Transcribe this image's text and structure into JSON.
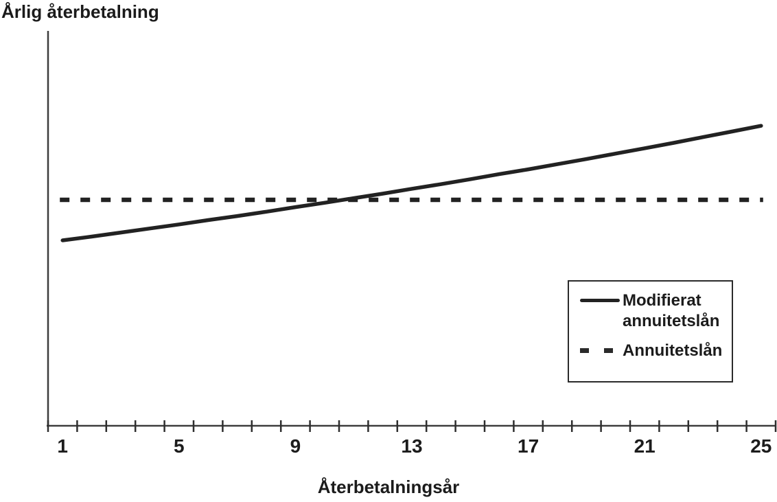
{
  "page": {
    "background": "#ffffff",
    "ink": "#222222"
  },
  "chart_data": {
    "type": "line",
    "title": "",
    "ylabel": "Årlig återbetalning",
    "xlabel": "Återbetalningsår",
    "x": [
      1,
      2,
      3,
      4,
      5,
      6,
      7,
      8,
      9,
      10,
      11,
      12,
      13,
      14,
      15,
      16,
      17,
      18,
      19,
      20,
      21,
      22,
      23,
      24,
      25
    ],
    "x_tick_labels": [
      "1",
      "5",
      "9",
      "13",
      "17",
      "21",
      "25"
    ],
    "x_labeled_years": [
      1,
      5,
      9,
      13,
      17,
      21,
      25
    ],
    "x_minor_ticks": "every year from 1 to 25",
    "y_axis_tick_labels": "none (unlabeled value axis)",
    "grid": false,
    "series": [
      {
        "name": "Modifierat annuitetslån",
        "line_style": "solid",
        "values": [
          85.0,
          86.4,
          87.9,
          89.4,
          90.9,
          92.5,
          94.0,
          95.6,
          97.3,
          98.9,
          100.6,
          102.3,
          104.1,
          105.8,
          107.6,
          109.5,
          111.3,
          113.2,
          115.1,
          117.1,
          119.1,
          121.1,
          123.2,
          125.3,
          127.4
        ]
      },
      {
        "name": "Annuitetslån",
        "line_style": "dashed",
        "values": [
          100,
          100,
          100,
          100,
          100,
          100,
          100,
          100,
          100,
          100,
          100,
          100,
          100,
          100,
          100,
          100,
          100,
          100,
          100,
          100,
          100,
          100,
          100,
          100,
          100
        ]
      }
    ],
    "values_note": "relative payment index read from plot; annuity level = 100, curves cross near year 11",
    "legend": {
      "position": "lower-right inside plot",
      "entries": [
        "Modifierat annuitetslån",
        "Annuitetslån"
      ]
    },
    "xlim": [
      0.5,
      25.5
    ],
    "ylim": [
      16,
      163
    ]
  }
}
